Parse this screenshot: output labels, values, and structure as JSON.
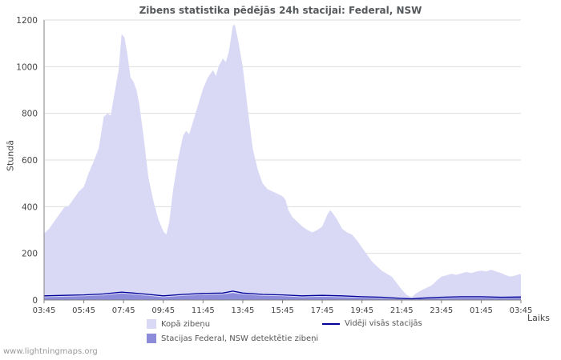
{
  "watermark": "www.lightningmaps.org",
  "chart_data": {
    "type": "area",
    "title": "Zibens statistika pēdējās 24h stacijai: Federal, NSW",
    "xlabel": "Laiks",
    "ylabel": "Stundā",
    "ylim": [
      0,
      1200
    ],
    "ytick": 200,
    "xlim": [
      0,
      24
    ],
    "xtick_step": 2,
    "xticks": [
      "03:45",
      "05:45",
      "07:45",
      "09:45",
      "11:45",
      "13:45",
      "15:45",
      "17:45",
      "19:45",
      "21:45",
      "23:45",
      "01:45",
      "03:45"
    ],
    "grid": "horizontal",
    "legend_position": "bottom",
    "colors": {
      "grid": "#dddddd",
      "axis": "#808080",
      "tick_text": "#444444"
    },
    "series": [
      {
        "name": "Kopā zibeņu",
        "type": "area",
        "color": "#d9d9f6",
        "points": [
          [
            0,
            285
          ],
          [
            0.25,
            305
          ],
          [
            0.5,
            335
          ],
          [
            0.75,
            365
          ],
          [
            1,
            395
          ],
          [
            1.25,
            405
          ],
          [
            1.5,
            435
          ],
          [
            1.75,
            465
          ],
          [
            2,
            485
          ],
          [
            2.25,
            545
          ],
          [
            2.5,
            595
          ],
          [
            2.75,
            650
          ],
          [
            3,
            785
          ],
          [
            3.2,
            800
          ],
          [
            3.35,
            790
          ],
          [
            3.5,
            865
          ],
          [
            3.75,
            985
          ],
          [
            3.9,
            1140
          ],
          [
            4.05,
            1125
          ],
          [
            4.2,
            1050
          ],
          [
            4.35,
            955
          ],
          [
            4.5,
            935
          ],
          [
            4.65,
            900
          ],
          [
            4.8,
            835
          ],
          [
            5,
            705
          ],
          [
            5.25,
            525
          ],
          [
            5.5,
            425
          ],
          [
            5.75,
            345
          ],
          [
            6,
            295
          ],
          [
            6.15,
            280
          ],
          [
            6.3,
            335
          ],
          [
            6.5,
            475
          ],
          [
            6.75,
            605
          ],
          [
            7,
            705
          ],
          [
            7.15,
            725
          ],
          [
            7.3,
            710
          ],
          [
            7.5,
            765
          ],
          [
            7.75,
            835
          ],
          [
            8,
            905
          ],
          [
            8.25,
            955
          ],
          [
            8.5,
            985
          ],
          [
            8.65,
            960
          ],
          [
            8.8,
            1005
          ],
          [
            9,
            1035
          ],
          [
            9.15,
            1020
          ],
          [
            9.3,
            1065
          ],
          [
            9.5,
            1175
          ],
          [
            9.6,
            1180
          ],
          [
            9.75,
            1120
          ],
          [
            10,
            1000
          ],
          [
            10.25,
            820
          ],
          [
            10.5,
            650
          ],
          [
            10.75,
            560
          ],
          [
            11,
            500
          ],
          [
            11.25,
            475
          ],
          [
            11.5,
            465
          ],
          [
            11.75,
            455
          ],
          [
            12,
            445
          ],
          [
            12.15,
            430
          ],
          [
            12.3,
            385
          ],
          [
            12.5,
            355
          ],
          [
            12.75,
            335
          ],
          [
            13,
            315
          ],
          [
            13.25,
            300
          ],
          [
            13.5,
            290
          ],
          [
            13.75,
            300
          ],
          [
            14,
            315
          ],
          [
            14.25,
            365
          ],
          [
            14.4,
            385
          ],
          [
            14.55,
            370
          ],
          [
            14.75,
            345
          ],
          [
            15,
            305
          ],
          [
            15.25,
            290
          ],
          [
            15.5,
            280
          ],
          [
            15.75,
            255
          ],
          [
            16,
            225
          ],
          [
            16.25,
            195
          ],
          [
            16.5,
            165
          ],
          [
            16.75,
            145
          ],
          [
            17,
            125
          ],
          [
            17.25,
            112
          ],
          [
            17.5,
            100
          ],
          [
            17.75,
            72
          ],
          [
            18,
            45
          ],
          [
            18.25,
            22
          ],
          [
            18.5,
            12
          ],
          [
            18.75,
            30
          ],
          [
            19,
            42
          ],
          [
            19.25,
            52
          ],
          [
            19.5,
            62
          ],
          [
            19.75,
            82
          ],
          [
            20,
            100
          ],
          [
            20.25,
            106
          ],
          [
            20.5,
            112
          ],
          [
            20.75,
            108
          ],
          [
            21,
            114
          ],
          [
            21.25,
            120
          ],
          [
            21.5,
            116
          ],
          [
            21.75,
            122
          ],
          [
            22,
            126
          ],
          [
            22.25,
            122
          ],
          [
            22.5,
            130
          ],
          [
            22.75,
            122
          ],
          [
            23,
            116
          ],
          [
            23.25,
            106
          ],
          [
            23.5,
            100
          ],
          [
            23.75,
            106
          ],
          [
            24,
            112
          ]
        ]
      },
      {
        "name": "Stacijas Federal, NSW detektētie zibeņi",
        "type": "area",
        "color": "#8c8cdb",
        "points": [
          [
            0,
            12
          ],
          [
            1,
            14
          ],
          [
            2,
            16
          ],
          [
            3,
            20
          ],
          [
            3.9,
            28
          ],
          [
            5,
            20
          ],
          [
            6,
            12
          ],
          [
            7,
            18
          ],
          [
            8,
            22
          ],
          [
            9,
            24
          ],
          [
            9.5,
            30
          ],
          [
            10,
            24
          ],
          [
            11,
            18
          ],
          [
            12,
            16
          ],
          [
            13,
            12
          ],
          [
            14,
            14
          ],
          [
            15,
            12
          ],
          [
            16,
            10
          ],
          [
            17,
            8
          ],
          [
            18,
            4
          ],
          [
            19,
            5
          ],
          [
            20,
            8
          ],
          [
            21,
            10
          ],
          [
            22,
            10
          ],
          [
            23,
            9
          ],
          [
            24,
            10
          ]
        ]
      },
      {
        "name": "Vidēji visās stacijās",
        "type": "line",
        "color": "#000099",
        "points": [
          [
            0,
            18
          ],
          [
            1,
            20
          ],
          [
            2,
            22
          ],
          [
            3,
            26
          ],
          [
            3.9,
            34
          ],
          [
            4.5,
            30
          ],
          [
            5,
            26
          ],
          [
            6,
            18
          ],
          [
            7,
            24
          ],
          [
            8,
            28
          ],
          [
            9,
            30
          ],
          [
            9.5,
            38
          ],
          [
            10,
            30
          ],
          [
            11,
            24
          ],
          [
            12,
            22
          ],
          [
            13,
            18
          ],
          [
            14,
            20
          ],
          [
            15,
            18
          ],
          [
            16,
            14
          ],
          [
            17,
            12
          ],
          [
            18,
            7
          ],
          [
            18.5,
            5
          ],
          [
            19,
            8
          ],
          [
            20,
            12
          ],
          [
            21,
            14
          ],
          [
            22,
            14
          ],
          [
            23,
            12
          ],
          [
            24,
            13
          ]
        ]
      }
    ]
  }
}
